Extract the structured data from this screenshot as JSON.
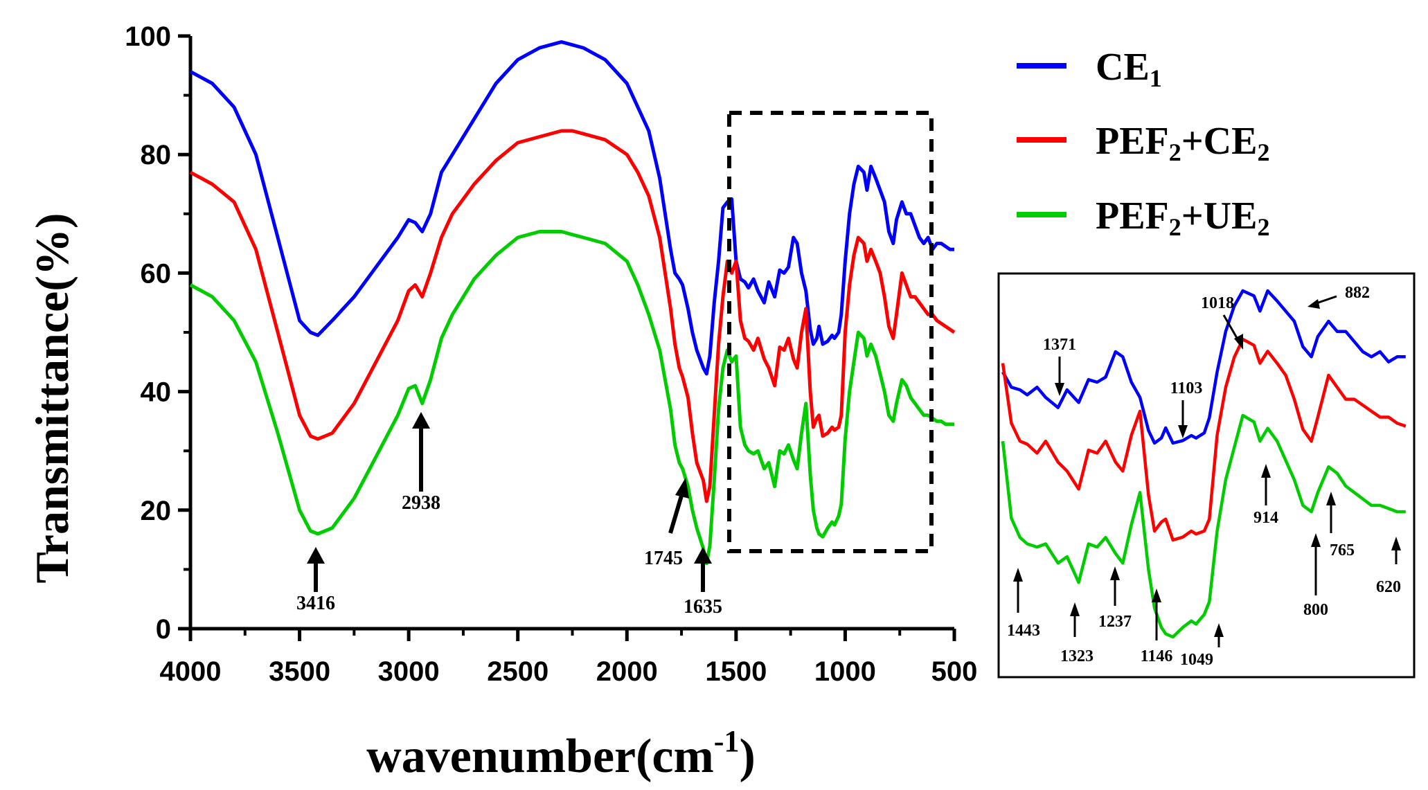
{
  "chart_data": {
    "type": "line",
    "x_label_main": "wavenumber(cm",
    "x_label_sup": "-1",
    "x_label_close": ")",
    "ylabel": "Transmittance(%)",
    "xlim": [
      4000,
      500
    ],
    "ylim": [
      0,
      100
    ],
    "x_ticks": [
      4000,
      3500,
      3000,
      2500,
      2000,
      1500,
      1000,
      500
    ],
    "y_ticks": [
      0,
      20,
      40,
      60,
      80,
      100
    ],
    "legend": [
      {
        "base": "CE",
        "sub1": "1",
        "mid": "",
        "sub2": "",
        "color": "#0000ff"
      },
      {
        "base": "PEF",
        "sub1": "2",
        "mid": "+CE",
        "sub2": "2",
        "color": "#ff0000"
      },
      {
        "base": "PEF",
        "sub1": "2",
        "mid": "+UE",
        "sub2": "2",
        "color": "#00cc00"
      }
    ],
    "series": [
      {
        "name": "CE1",
        "color": "#0000ff",
        "x": [
          4000,
          3900,
          3800,
          3700,
          3600,
          3500,
          3450,
          3416,
          3350,
          3250,
          3150,
          3050,
          3000,
          2970,
          2938,
          2900,
          2850,
          2800,
          2700,
          2600,
          2500,
          2400,
          2300,
          2250,
          2200,
          2100,
          2000,
          1950,
          1900,
          1850,
          1800,
          1780,
          1760,
          1745,
          1720,
          1700,
          1680,
          1650,
          1635,
          1620,
          1600,
          1580,
          1560,
          1540,
          1520,
          1500,
          1480,
          1460,
          1443,
          1420,
          1400,
          1371,
          1350,
          1323,
          1300,
          1280,
          1260,
          1237,
          1220,
          1200,
          1180,
          1160,
          1146,
          1130,
          1120,
          1103,
          1080,
          1060,
          1049,
          1030,
          1018,
          1000,
          980,
          960,
          940,
          914,
          900,
          882,
          860,
          840,
          820,
          800,
          780,
          765,
          740,
          720,
          700,
          680,
          660,
          640,
          620,
          600,
          580,
          560,
          540,
          520,
          500
        ],
        "y": [
          94,
          92,
          88,
          80,
          66,
          52,
          50,
          49.5,
          52,
          56,
          61,
          66,
          69,
          68.5,
          67,
          70,
          77,
          80,
          86,
          92,
          96,
          98,
          99,
          98.5,
          98,
          96,
          92,
          88,
          84,
          76,
          64,
          60,
          59,
          58,
          54,
          50,
          47,
          44,
          43,
          46,
          55,
          62,
          71,
          72,
          72.5,
          62,
          59,
          58.5,
          57.5,
          59,
          57,
          55,
          58.5,
          56,
          60.5,
          60,
          61,
          66,
          65,
          60,
          57,
          50.5,
          48,
          49,
          51,
          48,
          48.5,
          49.5,
          49,
          50,
          53,
          62,
          70,
          75,
          78,
          77,
          74,
          78,
          76,
          74,
          72,
          67,
          65,
          69,
          72,
          70,
          70,
          68,
          66,
          65,
          66,
          64,
          65,
          65,
          64.5,
          64,
          64
        ]
      },
      {
        "name": "PEF2+CE2",
        "color": "#ff0000",
        "x": [
          4000,
          3900,
          3800,
          3700,
          3600,
          3500,
          3450,
          3416,
          3350,
          3250,
          3150,
          3050,
          3000,
          2970,
          2938,
          2900,
          2850,
          2800,
          2700,
          2600,
          2500,
          2400,
          2300,
          2250,
          2200,
          2100,
          2000,
          1950,
          1900,
          1850,
          1800,
          1780,
          1760,
          1745,
          1720,
          1700,
          1680,
          1650,
          1635,
          1620,
          1600,
          1580,
          1560,
          1540,
          1520,
          1500,
          1480,
          1460,
          1443,
          1420,
          1400,
          1371,
          1350,
          1323,
          1300,
          1280,
          1260,
          1237,
          1220,
          1200,
          1180,
          1160,
          1146,
          1130,
          1120,
          1103,
          1080,
          1060,
          1049,
          1030,
          1018,
          1000,
          980,
          960,
          940,
          914,
          900,
          882,
          860,
          840,
          820,
          800,
          780,
          765,
          740,
          720,
          700,
          680,
          660,
          640,
          620,
          600,
          580,
          560,
          540,
          520,
          500
        ],
        "y": [
          77,
          75,
          72,
          64,
          50,
          36,
          32.5,
          32,
          33,
          38,
          45,
          52,
          57,
          58,
          56,
          60,
          66,
          70,
          75,
          79,
          82,
          83,
          84,
          84,
          83.5,
          82.5,
          80,
          77,
          73,
          66,
          54,
          48,
          44,
          42.5,
          39,
          33,
          28,
          25,
          21.5,
          24,
          36,
          48,
          56,
          62,
          60,
          62,
          52,
          49,
          48.5,
          47,
          49,
          45.5,
          44,
          41,
          47.5,
          47,
          49,
          45.5,
          44,
          50,
          54,
          40,
          34,
          35.5,
          36,
          32.5,
          33,
          34,
          33.5,
          34,
          36,
          50,
          58,
          63,
          66,
          65,
          62,
          64,
          62,
          60,
          56,
          51,
          49,
          53,
          60,
          58,
          56,
          56,
          55,
          54,
          53,
          53,
          52,
          51.5,
          51,
          50.5,
          50
        ]
      },
      {
        "name": "PEF2+UE2",
        "color": "#00cc00",
        "x": [
          4000,
          3900,
          3800,
          3700,
          3600,
          3500,
          3450,
          3416,
          3350,
          3250,
          3150,
          3050,
          3000,
          2970,
          2938,
          2900,
          2850,
          2800,
          2700,
          2600,
          2500,
          2400,
          2300,
          2250,
          2200,
          2100,
          2000,
          1950,
          1900,
          1850,
          1800,
          1780,
          1760,
          1745,
          1720,
          1700,
          1680,
          1650,
          1635,
          1620,
          1600,
          1580,
          1560,
          1540,
          1520,
          1500,
          1480,
          1460,
          1443,
          1420,
          1400,
          1371,
          1350,
          1323,
          1300,
          1280,
          1260,
          1237,
          1220,
          1200,
          1180,
          1160,
          1146,
          1130,
          1120,
          1103,
          1080,
          1060,
          1049,
          1030,
          1018,
          1000,
          980,
          960,
          940,
          914,
          900,
          882,
          860,
          840,
          820,
          800,
          780,
          765,
          740,
          720,
          700,
          680,
          660,
          640,
          620,
          600,
          580,
          560,
          540,
          520,
          500
        ],
        "y": [
          58,
          56,
          52,
          45,
          33,
          20,
          16.5,
          16,
          17,
          22,
          29,
          36,
          40.5,
          41,
          38,
          42,
          49,
          53,
          59,
          63,
          66,
          67,
          67,
          66.5,
          66,
          65,
          62,
          58,
          53,
          47,
          37,
          31,
          28,
          27,
          24,
          20,
          17,
          13.5,
          11,
          14,
          25,
          37,
          44,
          47,
          45,
          46,
          34,
          31,
          30,
          29.5,
          30,
          27,
          28,
          24,
          30,
          29.5,
          31,
          28.5,
          27,
          33,
          38,
          26,
          20,
          17,
          16,
          15.5,
          17,
          18,
          17.5,
          19,
          21,
          32,
          40,
          45,
          50,
          49,
          46,
          48,
          46,
          43,
          40,
          36,
          35,
          38,
          42,
          41,
          39,
          38,
          37,
          36,
          36,
          35.5,
          35,
          35,
          34.5,
          34.5,
          34.5
        ]
      }
    ],
    "annotations": [
      {
        "label": "3416",
        "x": 3416
      },
      {
        "label": "2938",
        "x": 2938
      },
      {
        "label": "1745",
        "x": 1745
      },
      {
        "label": "1635",
        "x": 1635
      }
    ],
    "inset": {
      "xlim": [
        1500,
        550
      ],
      "labels": [
        "1371",
        "1103",
        "1018",
        "882",
        "914",
        "765",
        "620",
        "800",
        "1443",
        "1323",
        "1237",
        "1146",
        "1049"
      ]
    }
  }
}
